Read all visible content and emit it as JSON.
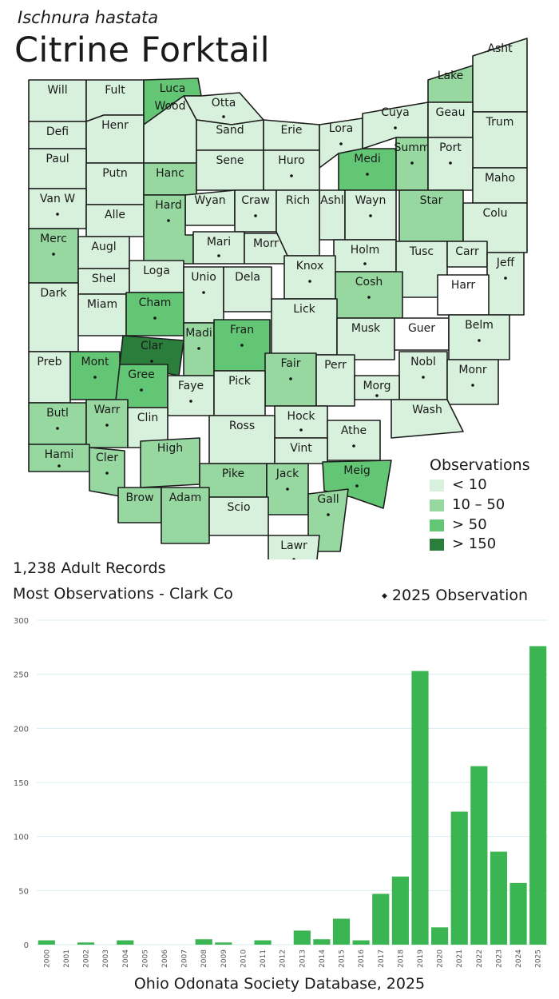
{
  "header": {
    "scientific_name": "Ischnura hastata",
    "common_name": "Citrine Forktail"
  },
  "summary": {
    "records": "1,238 Adult Records",
    "most_observations": "Most Observations - Clark Co",
    "marker_label": "2025  Observation"
  },
  "legend": {
    "title": "Observations",
    "items": [
      {
        "label": "< 10",
        "color": "#d8f1dc"
      },
      {
        "label": "10 – 50",
        "color": "#96d8a0"
      },
      {
        "label": "> 50",
        "color": "#62c675"
      },
      {
        "label": "> 150",
        "color": "#2a7d3b"
      }
    ]
  },
  "map": {
    "state": "Ohio",
    "counties": [
      {
        "abbr": "Will",
        "level": 0,
        "marker_2025": false
      },
      {
        "abbr": "Fult",
        "level": 0,
        "marker_2025": false
      },
      {
        "abbr": "Luca",
        "level": 2,
        "marker_2025": true
      },
      {
        "abbr": "Otta",
        "level": 0,
        "marker_2025": true
      },
      {
        "abbr": "Lake",
        "level": 1,
        "marker_2025": false
      },
      {
        "abbr": "Asht",
        "level": 0,
        "marker_2025": false
      },
      {
        "abbr": "Defi",
        "level": 0,
        "marker_2025": false
      },
      {
        "abbr": "Henr",
        "level": 0,
        "marker_2025": false
      },
      {
        "abbr": "Wood",
        "level": 0,
        "marker_2025": false
      },
      {
        "abbr": "Sand",
        "level": 0,
        "marker_2025": false
      },
      {
        "abbr": "Erie",
        "level": 0,
        "marker_2025": false
      },
      {
        "abbr": "Lora",
        "level": 0,
        "marker_2025": true
      },
      {
        "abbr": "Cuya",
        "level": 0,
        "marker_2025": true
      },
      {
        "abbr": "Geau",
        "level": 0,
        "marker_2025": false
      },
      {
        "abbr": "Trum",
        "level": 0,
        "marker_2025": false
      },
      {
        "abbr": "Paul",
        "level": 0,
        "marker_2025": false
      },
      {
        "abbr": "Putn",
        "level": 0,
        "marker_2025": false
      },
      {
        "abbr": "Hanc",
        "level": 1,
        "marker_2025": false
      },
      {
        "abbr": "Sene",
        "level": 0,
        "marker_2025": false
      },
      {
        "abbr": "Huro",
        "level": 0,
        "marker_2025": true
      },
      {
        "abbr": "Medi",
        "level": 2,
        "marker_2025": true
      },
      {
        "abbr": "Summ",
        "level": 1,
        "marker_2025": true
      },
      {
        "abbr": "Port",
        "level": 0,
        "marker_2025": true
      },
      {
        "abbr": "Maho",
        "level": 0,
        "marker_2025": false
      },
      {
        "abbr": "Van W",
        "level": 0,
        "marker_2025": true
      },
      {
        "abbr": "Alle",
        "level": 0,
        "marker_2025": false
      },
      {
        "abbr": "Wyan",
        "level": 0,
        "marker_2025": false
      },
      {
        "abbr": "Craw",
        "level": 0,
        "marker_2025": true
      },
      {
        "abbr": "Ashl",
        "level": 0,
        "marker_2025": false
      },
      {
        "abbr": "Wayn",
        "level": 0,
        "marker_2025": true
      },
      {
        "abbr": "Star",
        "level": 1,
        "marker_2025": false
      },
      {
        "abbr": "Colu",
        "level": 0,
        "marker_2025": false
      },
      {
        "abbr": "Merc",
        "level": 1,
        "marker_2025": true
      },
      {
        "abbr": "Augl",
        "level": 0,
        "marker_2025": false
      },
      {
        "abbr": "Hard",
        "level": 1,
        "marker_2025": true
      },
      {
        "abbr": "Mari",
        "level": 0,
        "marker_2025": true
      },
      {
        "abbr": "Morr",
        "level": 0,
        "marker_2025": false
      },
      {
        "abbr": "Rich",
        "level": 0,
        "marker_2025": false
      },
      {
        "abbr": "Holm",
        "level": 0,
        "marker_2025": true
      },
      {
        "abbr": "Tusc",
        "level": 0,
        "marker_2025": false
      },
      {
        "abbr": "Carr",
        "level": 0,
        "marker_2025": false
      },
      {
        "abbr": "Jeff",
        "level": 0,
        "marker_2025": true
      },
      {
        "abbr": "Shel",
        "level": 0,
        "marker_2025": false
      },
      {
        "abbr": "Loga",
        "level": 0,
        "marker_2025": false
      },
      {
        "abbr": "Unio",
        "level": 0,
        "marker_2025": true
      },
      {
        "abbr": "Dela",
        "level": 0,
        "marker_2025": false
      },
      {
        "abbr": "Knox",
        "level": 0,
        "marker_2025": true
      },
      {
        "abbr": "Cosh",
        "level": 1,
        "marker_2025": true
      },
      {
        "abbr": "Harr",
        "level": -1,
        "marker_2025": false
      },
      {
        "abbr": "Dark",
        "level": 0,
        "marker_2025": false
      },
      {
        "abbr": "Miam",
        "level": 0,
        "marker_2025": false
      },
      {
        "abbr": "Cham",
        "level": 2,
        "marker_2025": true
      },
      {
        "abbr": "Lick",
        "level": 0,
        "marker_2025": false
      },
      {
        "abbr": "Musk",
        "level": 0,
        "marker_2025": false
      },
      {
        "abbr": "Guer",
        "level": -1,
        "marker_2025": false
      },
      {
        "abbr": "Belm",
        "level": 0,
        "marker_2025": true
      },
      {
        "abbr": "Clar",
        "level": 3,
        "marker_2025": true
      },
      {
        "abbr": "Madi",
        "level": 1,
        "marker_2025": true
      },
      {
        "abbr": "Fran",
        "level": 2,
        "marker_2025": true
      },
      {
        "abbr": "Fair",
        "level": 1,
        "marker_2025": true
      },
      {
        "abbr": "Perr",
        "level": 0,
        "marker_2025": false
      },
      {
        "abbr": "Nobl",
        "level": 0,
        "marker_2025": true
      },
      {
        "abbr": "Monr",
        "level": 0,
        "marker_2025": true
      },
      {
        "abbr": "Preb",
        "level": 0,
        "marker_2025": false
      },
      {
        "abbr": "Mont",
        "level": 2,
        "marker_2025": true
      },
      {
        "abbr": "Gree",
        "level": 2,
        "marker_2025": true
      },
      {
        "abbr": "Faye",
        "level": 0,
        "marker_2025": true
      },
      {
        "abbr": "Pick",
        "level": 0,
        "marker_2025": false
      },
      {
        "abbr": "Morg",
        "level": 0,
        "marker_2025": true
      },
      {
        "abbr": "Butl",
        "level": 1,
        "marker_2025": true
      },
      {
        "abbr": "Warr",
        "level": 1,
        "marker_2025": true
      },
      {
        "abbr": "Clin",
        "level": 0,
        "marker_2025": false
      },
      {
        "abbr": "Hock",
        "level": 0,
        "marker_2025": true
      },
      {
        "abbr": "Wash",
        "level": 0,
        "marker_2025": false
      },
      {
        "abbr": "Ross",
        "level": 0,
        "marker_2025": false
      },
      {
        "abbr": "Athe",
        "level": 0,
        "marker_2025": true
      },
      {
        "abbr": "Hami",
        "level": 1,
        "marker_2025": true
      },
      {
        "abbr": "Cler",
        "level": 1,
        "marker_2025": true
      },
      {
        "abbr": "High",
        "level": 1,
        "marker_2025": false
      },
      {
        "abbr": "Vint",
        "level": 0,
        "marker_2025": false
      },
      {
        "abbr": "Meig",
        "level": 2,
        "marker_2025": true
      },
      {
        "abbr": "Pike",
        "level": 1,
        "marker_2025": false
      },
      {
        "abbr": "Jack",
        "level": 1,
        "marker_2025": true
      },
      {
        "abbr": "Brow",
        "level": 1,
        "marker_2025": false
      },
      {
        "abbr": "Adam",
        "level": 1,
        "marker_2025": false
      },
      {
        "abbr": "Scio",
        "level": 0,
        "marker_2025": false
      },
      {
        "abbr": "Gall",
        "level": 1,
        "marker_2025": true
      },
      {
        "abbr": "Lawr",
        "level": 0,
        "marker_2025": true
      }
    ]
  },
  "chart_data": {
    "type": "bar",
    "categories": [
      "2000",
      "2001",
      "2002",
      "2003",
      "2004",
      "2005",
      "2006",
      "2007",
      "2008",
      "2009",
      "2010",
      "2011",
      "2012",
      "2013",
      "2014",
      "2015",
      "2016",
      "2017",
      "2018",
      "2019",
      "2020",
      "2021",
      "2022",
      "2023",
      "2024",
      "2025"
    ],
    "values": [
      4,
      0,
      2,
      0,
      4,
      0,
      0,
      0,
      5,
      2,
      0,
      4,
      0,
      13,
      5,
      24,
      4,
      47,
      63,
      253,
      16,
      123,
      165,
      86,
      57,
      276
    ],
    "ylim": [
      0,
      300
    ],
    "yticks": [
      0,
      50,
      100,
      150,
      200,
      250,
      300
    ],
    "bar_color": "#3bb452",
    "grid": true,
    "title": "",
    "xlabel": "",
    "ylabel": ""
  },
  "footer": {
    "source": "Ohio Odonata Society Database, 2025"
  }
}
